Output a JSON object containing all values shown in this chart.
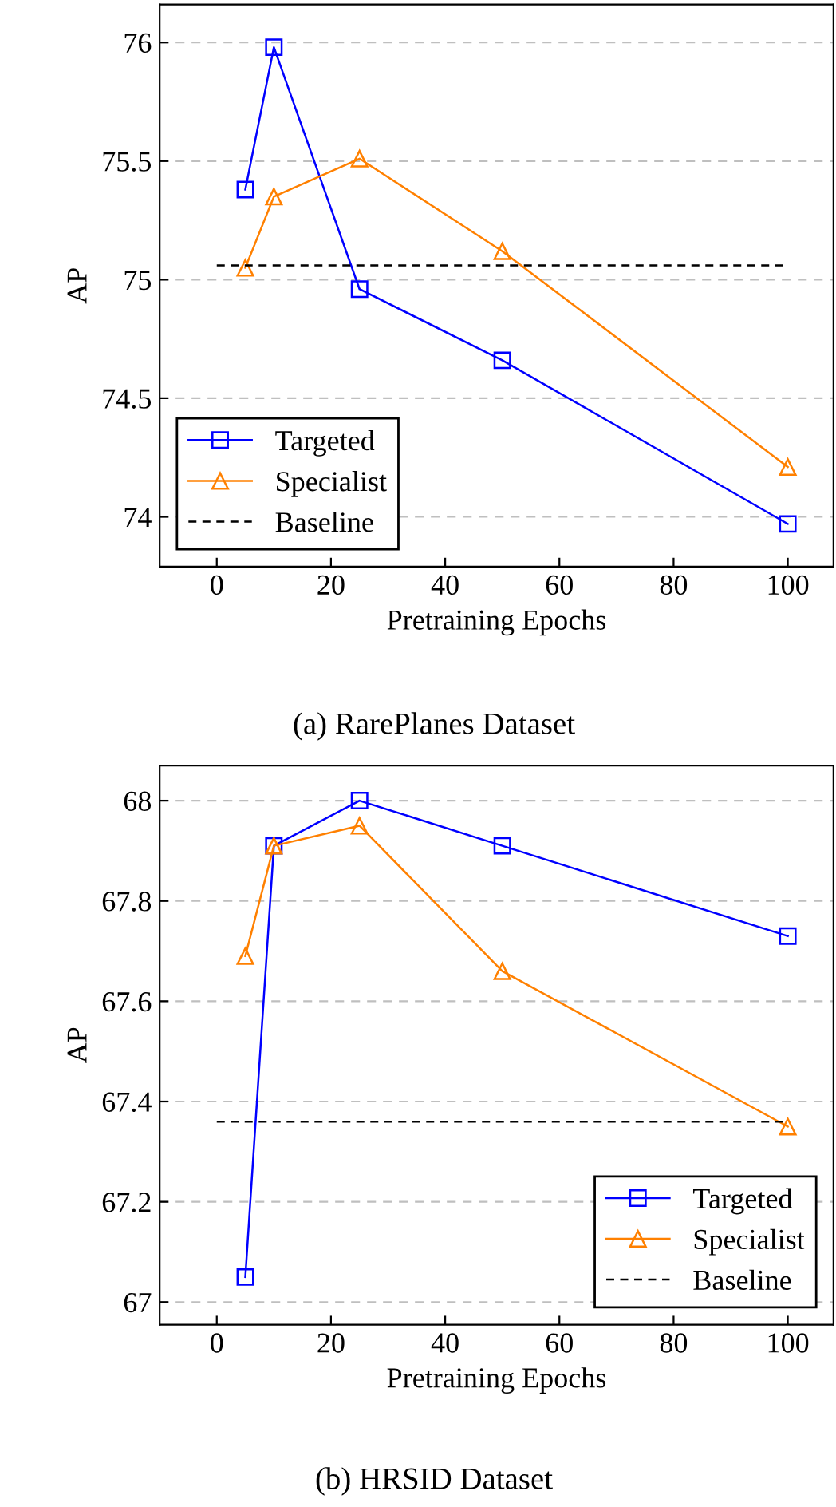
{
  "chart_data": [
    {
      "type": "line",
      "xlabel": "Pretraining Epochs",
      "ylabel": "AP",
      "annotations": [
        "(a) RarePlanes Dataset"
      ],
      "xlim": [
        -10,
        108
      ],
      "xticks": [
        0,
        20,
        40,
        60,
        80,
        100
      ],
      "ylim": [
        73.79,
        76.16
      ],
      "yticks": [
        74,
        74.5,
        75,
        75.5,
        76
      ],
      "grid": "y",
      "legend": "bottom left",
      "series": [
        {
          "name": "Targeted",
          "color": "#0000ff",
          "marker": "square",
          "line_style": "solid",
          "x": [
            5,
            10,
            25,
            50,
            100
          ],
          "values": [
            75.38,
            75.98,
            74.96,
            74.66,
            73.97
          ]
        },
        {
          "name": "Specialist",
          "color": "#ff8000",
          "marker": "triangle",
          "line_style": "solid",
          "x": [
            5,
            10,
            25,
            50,
            100
          ],
          "values": [
            75.05,
            75.35,
            75.51,
            75.12,
            74.21
          ]
        },
        {
          "name": "Baseline",
          "color": "#000000",
          "marker": "none",
          "line_style": "dashed",
          "x": [
            0,
            100
          ],
          "values": [
            75.06,
            75.06
          ]
        }
      ]
    },
    {
      "type": "line",
      "xlabel": "Pretraining Epochs",
      "ylabel": "AP",
      "annotations": [
        "(b) HRSID Dataset"
      ],
      "xlim": [
        -10,
        108
      ],
      "xticks": [
        0,
        20,
        40,
        60,
        80,
        100
      ],
      "ylim": [
        66.955,
        68.07
      ],
      "yticks": [
        67,
        67.2,
        67.4,
        67.6,
        67.8,
        68
      ],
      "grid": "y",
      "legend": "bottom right",
      "series": [
        {
          "name": "Targeted",
          "color": "#0000ff",
          "marker": "square",
          "line_style": "solid",
          "x": [
            5,
            10,
            25,
            50,
            100
          ],
          "values": [
            67.05,
            67.91,
            68.0,
            67.91,
            67.73
          ]
        },
        {
          "name": "Specialist",
          "color": "#ff8000",
          "marker": "triangle",
          "line_style": "solid",
          "x": [
            5,
            10,
            25,
            50,
            100
          ],
          "values": [
            67.69,
            67.91,
            67.95,
            67.66,
            67.35
          ]
        },
        {
          "name": "Baseline",
          "color": "#000000",
          "marker": "none",
          "line_style": "dashed",
          "x": [
            0,
            100
          ],
          "values": [
            67.36,
            67.36
          ]
        }
      ]
    }
  ]
}
